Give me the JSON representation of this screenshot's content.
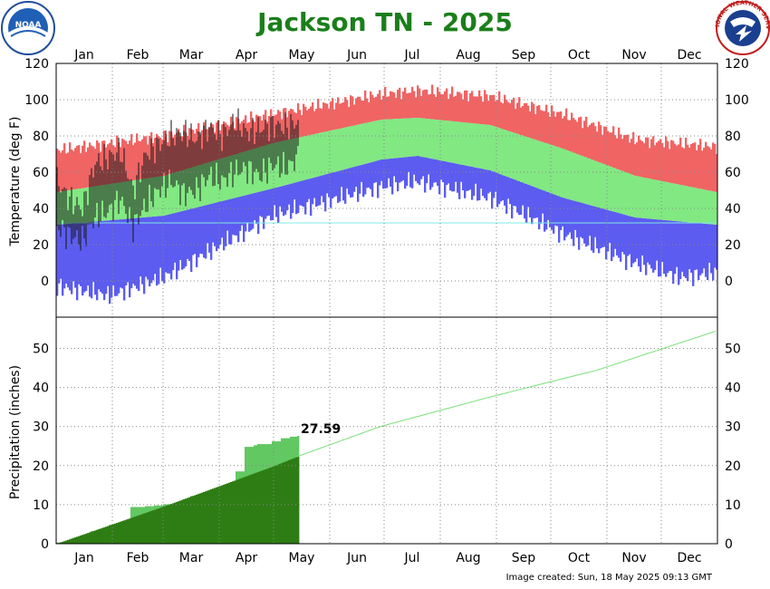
{
  "title": "Jackson TN - 2025",
  "footer": "Image created: Sun, 18 May 2025 09:13 GMT",
  "logos": {
    "left": {
      "icon": "noaa-logo-icon",
      "text": "NOAA"
    },
    "right": {
      "icon": "nws-logo-icon",
      "text": "NATIONAL WEATHER SERVICE"
    }
  },
  "months": [
    "Jan",
    "Feb",
    "Mar",
    "Apr",
    "May",
    "Jun",
    "Jul",
    "Aug",
    "Sep",
    "Oct",
    "Nov",
    "Dec"
  ],
  "colors": {
    "record": "#f06464",
    "normal": "#82e882",
    "record_low": "#5c5cf0",
    "observed": "#1a1a1a",
    "freezing": "#7fe8e8",
    "precip_observed": "#62c862",
    "precip_normal": "#2e7d14",
    "precip_normal_line": "#7ae07a",
    "title": "#1a7f1a"
  },
  "chart_data": [
    {
      "type": "bar",
      "ylabel": "Temperature (deg F)",
      "ylim": [
        -20,
        120
      ],
      "yticks": [
        0,
        20,
        40,
        60,
        80,
        100,
        120
      ],
      "grid": true,
      "freezing_line": 32,
      "normal_high": {
        "x": [
          1,
          60,
          120,
          180,
          200,
          240,
          280,
          320,
          365
        ],
        "y": [
          49,
          58,
          76,
          89,
          90,
          86,
          73,
          58,
          49
        ]
      },
      "normal_low": {
        "x": [
          1,
          60,
          120,
          180,
          200,
          240,
          280,
          320,
          365
        ],
        "y": [
          31,
          36,
          51,
          67,
          69,
          61,
          46,
          35,
          31
        ]
      },
      "record_high": {
        "x": [
          1,
          60,
          120,
          180,
          200,
          240,
          280,
          320,
          365
        ],
        "y": [
          72,
          80,
          92,
          103,
          105,
          102,
          92,
          78,
          74
        ]
      },
      "record_low": {
        "x": [
          1,
          30,
          60,
          120,
          180,
          200,
          240,
          280,
          320,
          345,
          365
        ],
        "y": [
          -3,
          -8,
          2,
          36,
          52,
          55,
          46,
          26,
          10,
          2,
          5
        ]
      },
      "observed_2025": {
        "day": [
          1,
          8,
          15,
          22,
          29,
          36,
          43,
          50,
          57,
          64,
          71,
          78,
          85,
          92,
          99,
          106,
          113,
          120,
          127,
          134
        ],
        "high": [
          55,
          45,
          40,
          65,
          68,
          72,
          50,
          70,
          75,
          80,
          82,
          78,
          85,
          80,
          88,
          82,
          84,
          86,
          85,
          88
        ],
        "low": [
          30,
          25,
          22,
          35,
          38,
          45,
          30,
          42,
          50,
          55,
          48,
          50,
          58,
          55,
          60,
          62,
          58,
          64,
          62,
          68
        ]
      }
    },
    {
      "type": "area",
      "ylabel": "Precipitation (inches)",
      "ylim": [
        0,
        58
      ],
      "yticks": [
        0,
        10,
        20,
        30,
        40,
        50
      ],
      "grid": true,
      "annotation": "27.59",
      "observed_cumulative": {
        "day": [
          1,
          10,
          20,
          30,
          40,
          42,
          50,
          55,
          60,
          70,
          75,
          85,
          95,
          100,
          105,
          110,
          112,
          120,
          125,
          130,
          134
        ],
        "value": [
          0.3,
          1.5,
          3.2,
          4.8,
          6.0,
          9.4,
          9.6,
          9.8,
          10.1,
          10.5,
          12.2,
          13.0,
          13.8,
          18.5,
          24.8,
          25.2,
          25.5,
          26.2,
          27.0,
          27.4,
          27.59
        ]
      },
      "normal_cumulative": {
        "day": [
          1,
          60,
          120,
          134,
          180,
          240,
          300,
          365
        ],
        "value": [
          0,
          9.5,
          19.7,
          22.3,
          30.0,
          37.5,
          44.5,
          54.4
        ]
      }
    }
  ]
}
